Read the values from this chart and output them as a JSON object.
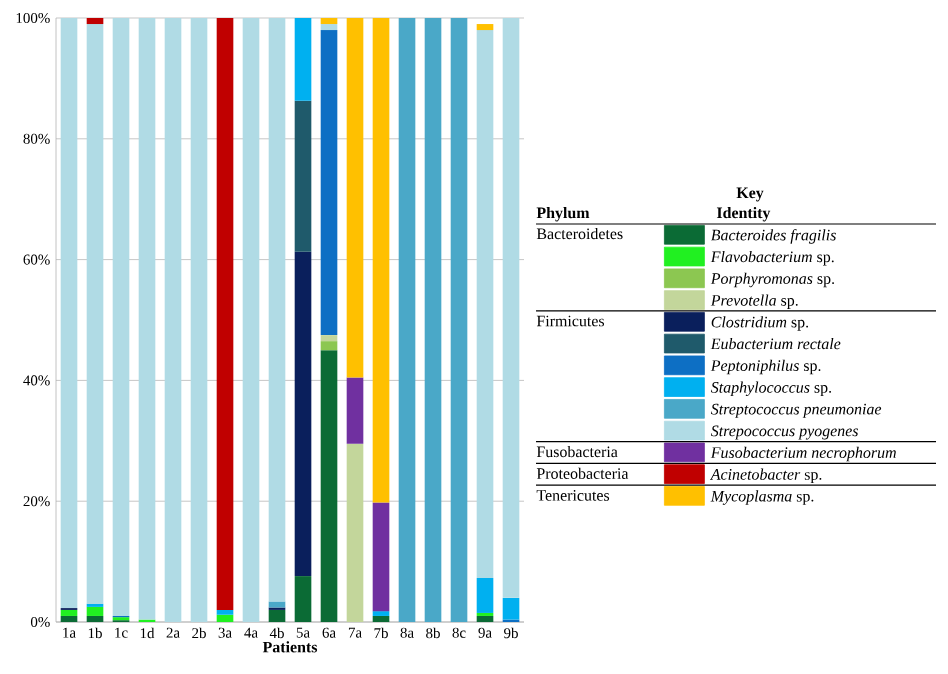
{
  "chart_data": {
    "type": "bar",
    "stacked": true,
    "xlabel": "Patients",
    "legend_title": "Key",
    "legend": "right",
    "grid": "y",
    "categories": [
      "1a",
      "1b",
      "1c",
      "1d",
      "2a",
      "2b",
      "3a",
      "4a",
      "4b",
      "5a",
      "6a",
      "7a",
      "7b",
      "8a",
      "8b",
      "8c",
      "9a",
      "9b"
    ],
    "ylim": [
      0,
      100
    ],
    "yticks": [
      {
        "value": 0,
        "label": "0%"
      },
      {
        "value": 20,
        "label": "20%"
      },
      {
        "value": 40,
        "label": "40%"
      },
      {
        "value": 60,
        "label": "60%"
      },
      {
        "value": 80,
        "label": "80%"
      },
      {
        "value": 100,
        "label": "100%"
      }
    ],
    "series": [
      {
        "name": "Bacteroides fragilis",
        "color": "#0b6b35",
        "values": [
          1,
          1,
          0.3,
          0,
          0,
          0,
          0,
          0,
          2,
          7.6,
          45,
          0,
          1,
          0,
          0,
          0,
          1,
          0
        ]
      },
      {
        "name": "*Flavobacterium* sp.",
        "color": "#21f021",
        "values": [
          1,
          1.5,
          0.5,
          0.4,
          0,
          0,
          1.2,
          0,
          0,
          0,
          0,
          0,
          0,
          0,
          0,
          0,
          0.5,
          0
        ]
      },
      {
        "name": "*Porphyromonas* sp.",
        "color": "#8cc751",
        "values": [
          0,
          0,
          0,
          0,
          0,
          0,
          0,
          0,
          0,
          0,
          1.5,
          0,
          0,
          0,
          0,
          0,
          0,
          0
        ]
      },
      {
        "name": "*Prevotella* sp.",
        "color": "#c3d69b",
        "values": [
          0,
          0,
          0,
          0,
          0,
          0,
          0,
          0,
          0,
          0,
          1,
          29.5,
          0,
          0,
          0,
          0,
          0,
          0
        ]
      },
      {
        "name": "*Clostridium* sp.",
        "color": "#0a1f5c",
        "values": [
          0.3,
          0,
          0,
          0,
          0,
          0,
          0,
          0,
          0.4,
          53.7,
          0,
          0,
          0,
          0,
          0,
          0,
          0,
          0
        ]
      },
      {
        "name": "Eubacterium rectale",
        "color": "#1f5a6b",
        "values": [
          0,
          0,
          0,
          0,
          0,
          0,
          0,
          0,
          0,
          25,
          0,
          0,
          0,
          0,
          0,
          0,
          0,
          0
        ]
      },
      {
        "name": "*Peptoniphilus* sp.",
        "color": "#0d6fc4",
        "values": [
          0,
          0,
          0.2,
          0,
          0,
          0,
          0,
          0,
          0,
          0,
          50.5,
          0,
          0,
          0,
          0,
          0,
          0,
          0.4
        ]
      },
      {
        "name": "*Staphylococcus* sp.",
        "color": "#00b0f0",
        "values": [
          0,
          0.5,
          0,
          0,
          0,
          0,
          0.8,
          0,
          0,
          13.7,
          0,
          0,
          0.8,
          0,
          0,
          0,
          5.8,
          3.6
        ]
      },
      {
        "name": "Streptococcus pneumoniae",
        "color": "#4aa8c8",
        "values": [
          0,
          0,
          0,
          0,
          0,
          0,
          0,
          0,
          1,
          0,
          0,
          0,
          0,
          100,
          100,
          100,
          0,
          0
        ]
      },
      {
        "name": "Strepococcus pyogenes",
        "color": "#b0dbe5",
        "values": [
          97.7,
          96,
          99,
          99.6,
          100,
          100,
          0,
          100,
          96.6,
          0,
          1,
          0,
          0,
          0,
          0,
          0,
          90.7,
          96
        ]
      },
      {
        "name": "Fusobacterium necrophorum",
        "color": "#7030a0",
        "values": [
          0,
          0,
          0,
          0,
          0,
          0,
          0,
          0,
          0,
          0,
          0,
          11,
          18,
          0,
          0,
          0,
          0,
          0
        ]
      },
      {
        "name": "*Acinetobacter* sp.",
        "color": "#c00000",
        "values": [
          0,
          1,
          0,
          0,
          0,
          0,
          98,
          0,
          0,
          0,
          0,
          0,
          0,
          0,
          0,
          0,
          0,
          0
        ]
      },
      {
        "name": "*Mycoplasma* sp.",
        "color": "#ffc000",
        "values": [
          0,
          0,
          0,
          0,
          0,
          0,
          0,
          0,
          0,
          0,
          1,
          59.5,
          80.2,
          0,
          0,
          0,
          1,
          0
        ]
      }
    ],
    "annotations": [
      "Phylum",
      "Identity",
      "Bacteroidetes",
      "Firmicutes",
      "Fusobacteria",
      "Proteobacteria",
      "Tenericutes"
    ]
  }
}
